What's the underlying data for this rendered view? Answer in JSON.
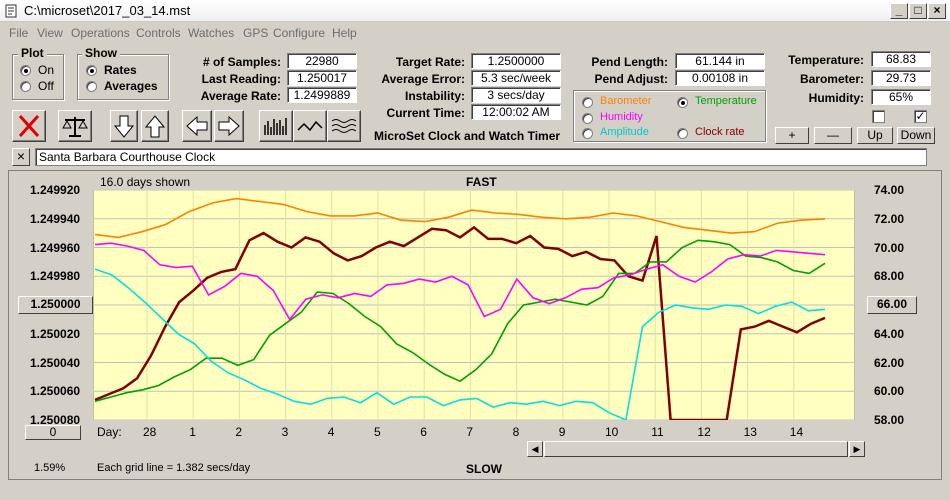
{
  "window": {
    "title": "C:\\microset\\2017_03_14.mst"
  },
  "menu": [
    "File",
    "View",
    "Operations",
    "Controls",
    "Watches",
    "GPS",
    "Configure",
    "Help"
  ],
  "plot_group": {
    "title": "Plot",
    "options": [
      "On",
      "Off"
    ],
    "selected": "On"
  },
  "show_group": {
    "title": "Show",
    "options": [
      "Rates",
      "Averages"
    ],
    "selected": "Rates"
  },
  "stats": {
    "samples_label": "# of Samples:",
    "samples_value": "22980",
    "last_label": "Last Reading:",
    "last_value": "1.250017",
    "avg_label": "Average Rate:",
    "avg_value": "1.2499889",
    "target_label": "Target Rate:",
    "target_value": "1.2500000",
    "error_label": "Average Error:",
    "error_value": "5.3 sec/week",
    "instab_label": "Instability:",
    "instab_value": "3 secs/day",
    "time_label": "Current Time:",
    "time_value": "12:00:02 AM",
    "pend_len_label": "Pend Length:",
    "pend_len_value": "61.144 in",
    "pend_adj_label": "Pend Adjust:",
    "pend_adj_value": "0.00108 in",
    "temp_label": "Temperature:",
    "temp_value": "68.83",
    "baro_label": "Barometer:",
    "baro_value": "29.73",
    "humid_label": "Humidity:",
    "humid_value": "65%"
  },
  "app_caption": "MicroSet Clock and Watch Timer",
  "sensors": {
    "options": [
      {
        "label": "Barometer",
        "color": "#ff8000",
        "selected": false
      },
      {
        "label": "Temperature",
        "color": "#00a000",
        "selected": true
      },
      {
        "label": "Humidity",
        "color": "#ff00ff",
        "selected": false
      },
      {
        "label": "Clock rate",
        "color": "#800000",
        "selected": false
      },
      {
        "label": "Amplitude",
        "color": "#00e0e0",
        "selected": false
      }
    ]
  },
  "scale_buttons": {
    "plus": "+",
    "minus": "—",
    "up": "Up",
    "down": "Down"
  },
  "toolbar_icons": [
    "close-x-icon",
    "balance-scale-icon",
    "arrow-down-icon",
    "arrow-up-icon",
    "arrow-left-icon",
    "arrow-right-icon",
    "bar-graph-icon",
    "line-wave-icon",
    "multi-wave-icon"
  ],
  "description": {
    "clear_button": "×",
    "text": "Santa Barbara Courthouse Clock"
  },
  "chart": {
    "days_shown": "16.0 days shown",
    "top_label": "FAST",
    "bottom_label": "SLOW",
    "left_center_value": "1.250000",
    "right_center_value": "66.00",
    "zero_button": "0",
    "day_prefix": "Day:",
    "percent": "1.59%",
    "grid_note": "Each grid line = 1.382 secs/day"
  },
  "chart_data": {
    "type": "line",
    "title": "",
    "y_left_ticks": [
      "1.249920",
      "1.249940",
      "1.249960",
      "1.249980",
      "1.250000",
      "1.250020",
      "1.250040",
      "1.250060",
      "1.250080"
    ],
    "y_right_ticks": [
      "74.00",
      "72.00",
      "70.00",
      "68.00",
      "66.00",
      "64.00",
      "62.00",
      "60.00",
      "58.00"
    ],
    "ylim_right": [
      58,
      74
    ],
    "x_ticks": [
      "28",
      "1",
      "2",
      "3",
      "4",
      "5",
      "6",
      "7",
      "8",
      "9",
      "10",
      "11",
      "12",
      "13",
      "14"
    ],
    "series": [
      {
        "name": "Barometer",
        "color": "#ff8000",
        "values": [
          70.9,
          70.7,
          71.1,
          71.6,
          72.5,
          73.1,
          73.4,
          73.2,
          73.0,
          72.5,
          72.2,
          72.2,
          72.4,
          71.9,
          71.8,
          72.1,
          72.6,
          72.4,
          72.3,
          72.1,
          72.0,
          72.1,
          72.4,
          72.2,
          71.8,
          71.4,
          71.2,
          71.0,
          71.1,
          71.7,
          71.9,
          72.0
        ]
      },
      {
        "name": "Clock rate",
        "color": "#800000",
        "values": [
          59.4,
          59.8,
          60.2,
          60.9,
          62.5,
          64.5,
          66.2,
          67.0,
          67.9,
          68.3,
          68.5,
          70.5,
          71.0,
          70.4,
          70.0,
          70.7,
          70.4,
          69.6,
          69.1,
          69.4,
          70.0,
          70.4,
          70.1,
          70.7,
          71.3,
          71.2,
          70.7,
          71.4,
          70.6,
          70.6,
          70.3,
          70.8,
          70.0,
          69.9,
          69.4,
          69.7,
          69.2,
          69.1,
          68.0,
          67.7,
          70.8,
          58.0,
          58.0,
          58.0,
          58.0,
          58.0,
          64.3,
          64.5,
          64.9,
          64.5,
          64.1,
          64.7,
          65.1
        ]
      },
      {
        "name": "Temperature",
        "color": "#00a000",
        "values": [
          59.3,
          59.6,
          59.9,
          60.1,
          60.4,
          61.0,
          61.5,
          62.3,
          62.3,
          61.8,
          62.2,
          63.9,
          64.7,
          65.5,
          66.9,
          66.8,
          66.1,
          65.2,
          64.5,
          63.3,
          62.7,
          61.9,
          61.2,
          60.7,
          61.5,
          62.6,
          64.7,
          66.0,
          66.2,
          66.4,
          66.2,
          66.0,
          66.6,
          68.2,
          68.2,
          69.0,
          69.0,
          70.0,
          70.5,
          70.4,
          70.2,
          69.4,
          69.3,
          69.0,
          68.4,
          68.2,
          68.9
        ]
      },
      {
        "name": "Humidity",
        "color": "#ff00ff",
        "values": [
          70.2,
          70.3,
          70.1,
          69.8,
          68.8,
          68.6,
          68.7,
          66.7,
          67.3,
          68.2,
          68.0,
          67.0,
          65.0,
          66.4,
          66.7,
          66.5,
          66.8,
          66.6,
          67.4,
          67.5,
          67.8,
          67.6,
          68.0,
          67.4,
          65.2,
          65.7,
          67.8,
          66.5,
          66.1,
          66.5,
          67.1,
          67.2,
          67.9,
          68.1,
          68.5,
          68.8,
          68.0,
          67.6,
          68.3,
          69.2,
          69.5,
          69.4,
          69.8,
          69.7,
          69.6,
          69.5
        ]
      },
      {
        "name": "Amplitude",
        "color": "#00e0e0",
        "values": [
          68.5,
          68.1,
          67.2,
          66.2,
          65.1,
          64.0,
          63.3,
          62.1,
          61.3,
          60.8,
          60.2,
          59.8,
          59.3,
          59.1,
          59.5,
          59.6,
          59.2,
          59.9,
          59.1,
          59.6,
          59.6,
          59.0,
          59.4,
          59.5,
          58.9,
          59.2,
          59.1,
          59.3,
          59.0,
          59.3,
          59.2,
          58.5,
          58.0,
          64.5,
          65.5,
          66.0,
          65.8,
          65.7,
          66.0,
          65.9,
          65.4,
          65.9,
          66.2,
          65.6,
          65.7
        ]
      }
    ],
    "grid": true,
    "y_axis_left_label": "",
    "y_axis_right_label": ""
  }
}
